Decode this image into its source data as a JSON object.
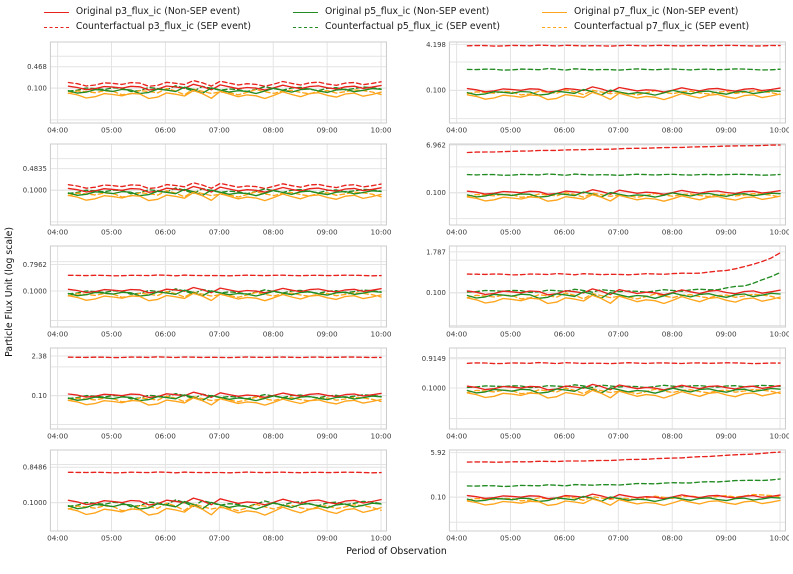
{
  "palette": {
    "red": "#e8221c",
    "green": "#228B22",
    "orange": "#ffa51c",
    "grid": "#e4e4e4",
    "spine": "#cccccc"
  },
  "legend": {
    "items": [
      {
        "label": "Original p3_flux_ic (Non-SEP event)",
        "color": "red",
        "dashed": false
      },
      {
        "label": "Counterfactual p3_flux_ic (SEP event)",
        "color": "red",
        "dashed": true
      },
      {
        "label": "Original p5_flux_ic (Non-SEP event)",
        "color": "green",
        "dashed": false
      },
      {
        "label": "Counterfactual p5_flux_ic (SEP event)",
        "color": "green",
        "dashed": true
      },
      {
        "label": "Original p7_flux_ic (Non-SEP event)",
        "color": "orange",
        "dashed": false
      },
      {
        "label": "Counterfactual p7_flux_ic (SEP event)",
        "color": "orange",
        "dashed": true
      }
    ]
  },
  "axes": {
    "ylabel": "Particle Flux Unit (log scale)",
    "xlabel": "Period of Observation",
    "x_ticks": [
      "04:00",
      "05:00",
      "06:00",
      "07:00",
      "08:00",
      "09:00",
      "10:00"
    ]
  },
  "chart_data": {
    "type": "line",
    "layout": "5 rows x 2 columns of subplots, shared log-scale y concept, x from 04:00 to 10:00",
    "x_start_minutes": 12,
    "x_end_minutes": 360,
    "waveform": [
      0.3,
      -0.1,
      -0.8,
      -0.5,
      0.2,
      0.0,
      -0.3,
      0.25,
      0.1,
      -0.9,
      -0.6,
      0.35,
      0.05,
      -0.35,
      0.9,
      0.2,
      -0.85,
      0.7,
      0.1,
      -0.5,
      -0.1,
      -0.3,
      -0.9,
      -0.2,
      0.6,
      0.0,
      -0.5,
      0.2,
      0.4,
      -0.2,
      -0.6,
      0.1,
      0.3,
      -0.4,
      0.0,
      0.5
    ],
    "waveform_note": "shared normalized oscillation pattern; series value = base*10^(amp*waveform[i+phase]) with optional log-linear trend base->end shaped by exponent p",
    "subplots": [
      {
        "id": "row1-left",
        "y_ticks": [
          {
            "label": "0.468",
            "value": 0.468
          },
          {
            "label": "0.100",
            "value": 0.1
          }
        ],
        "ylim": [
          0.008,
          2.8
        ],
        "series": [
          {
            "name": "Counterfactual p3_flux_ic (SEP event)",
            "color": "red",
            "dashed": true,
            "base": 0.14,
            "amp": 0.1,
            "phase": 0
          },
          {
            "name": "Counterfactual p5_flux_ic (SEP event)",
            "color": "green",
            "dashed": true,
            "base": 0.096,
            "amp": 0.1,
            "phase": 2
          },
          {
            "name": "Counterfactual p7_flux_ic (SEP event)",
            "color": "orange",
            "dashed": true,
            "base": 0.077,
            "amp": 0.11,
            "phase": 3
          },
          {
            "name": "Original p3_flux_ic (Non-SEP event)",
            "color": "red",
            "dashed": false,
            "base": 0.107,
            "amp": 0.1,
            "phase": 0
          },
          {
            "name": "Original p5_flux_ic (Non-SEP event)",
            "color": "green",
            "dashed": false,
            "base": 0.085,
            "amp": 0.11,
            "phase": 1
          },
          {
            "name": "Original p7_flux_ic (Non-SEP event)",
            "color": "orange",
            "dashed": false,
            "base": 0.063,
            "amp": 0.14,
            "phase": 0
          }
        ]
      },
      {
        "id": "row1-right",
        "y_ticks": [
          {
            "label": "4.198",
            "value": 4.198
          },
          {
            "label": "0.100",
            "value": 0.1
          }
        ],
        "ylim": [
          0.007,
          5.1
        ],
        "series": [
          {
            "name": "Counterfactual p3_flux_ic (SEP event)",
            "color": "red",
            "dashed": true,
            "base": 3.8,
            "amp": 0.018,
            "phase": 6
          },
          {
            "name": "Counterfactual p5_flux_ic (SEP event)",
            "color": "green",
            "dashed": true,
            "base": 0.55,
            "amp": 0.03,
            "phase": 5
          },
          {
            "name": "Counterfactual p7_flux_ic (SEP event)",
            "color": "orange",
            "dashed": true,
            "base": 0.085,
            "amp": 0.1,
            "phase": 3
          },
          {
            "name": "Original p3_flux_ic (Non-SEP event)",
            "color": "red",
            "dashed": false,
            "base": 0.107,
            "amp": 0.1,
            "phase": 0
          },
          {
            "name": "Original p5_flux_ic (Non-SEP event)",
            "color": "green",
            "dashed": false,
            "base": 0.085,
            "amp": 0.11,
            "phase": 1
          },
          {
            "name": "Original p7_flux_ic (Non-SEP event)",
            "color": "orange",
            "dashed": false,
            "base": 0.063,
            "amp": 0.14,
            "phase": 0
          }
        ]
      },
      {
        "id": "row2-left",
        "y_ticks": [
          {
            "label": "0.4835",
            "value": 0.4835
          },
          {
            "label": "0.1000",
            "value": 0.1
          }
        ],
        "ylim": [
          0.008,
          2.9
        ],
        "series": [
          {
            "name": "Counterfactual p3_flux_ic (SEP event)",
            "color": "red",
            "dashed": true,
            "base": 0.14,
            "amp": 0.1,
            "phase": 0
          },
          {
            "name": "Counterfactual p5_flux_ic (SEP event)",
            "color": "green",
            "dashed": true,
            "base": 0.096,
            "amp": 0.1,
            "phase": 2
          },
          {
            "name": "Counterfactual p7_flux_ic (SEP event)",
            "color": "orange",
            "dashed": true,
            "base": 0.077,
            "amp": 0.11,
            "phase": 3
          },
          {
            "name": "Original p3_flux_ic (Non-SEP event)",
            "color": "red",
            "dashed": false,
            "base": 0.107,
            "amp": 0.1,
            "phase": 0
          },
          {
            "name": "Original p5_flux_ic (Non-SEP event)",
            "color": "green",
            "dashed": false,
            "base": 0.085,
            "amp": 0.11,
            "phase": 1
          },
          {
            "name": "Original p7_flux_ic (Non-SEP event)",
            "color": "orange",
            "dashed": false,
            "base": 0.063,
            "amp": 0.14,
            "phase": 0
          }
        ]
      },
      {
        "id": "row2-right",
        "y_ticks": [
          {
            "label": "6.962",
            "value": 6.962
          },
          {
            "label": "0.100",
            "value": 0.1
          }
        ],
        "ylim": [
          0.0057,
          7.6
        ],
        "series": [
          {
            "name": "Counterfactual p3_flux_ic (SEP event)",
            "color": "red",
            "dashed": true,
            "base": 3.6,
            "end": 7.0,
            "p": 1,
            "amp": 0.008,
            "phase": 6
          },
          {
            "name": "Counterfactual p5_flux_ic (SEP event)",
            "color": "green",
            "dashed": true,
            "base": 0.5,
            "amp": 0.028,
            "phase": 5
          },
          {
            "name": "Counterfactual p7_flux_ic (SEP event)",
            "color": "orange",
            "dashed": true,
            "base": 0.082,
            "amp": 0.1,
            "phase": 3
          },
          {
            "name": "Original p3_flux_ic (Non-SEP event)",
            "color": "red",
            "dashed": false,
            "base": 0.107,
            "amp": 0.1,
            "phase": 0
          },
          {
            "name": "Original p5_flux_ic (Non-SEP event)",
            "color": "green",
            "dashed": false,
            "base": 0.085,
            "amp": 0.11,
            "phase": 1
          },
          {
            "name": "Original p7_flux_ic (Non-SEP event)",
            "color": "orange",
            "dashed": false,
            "base": 0.063,
            "amp": 0.14,
            "phase": 0
          }
        ]
      },
      {
        "id": "row3-left",
        "y_ticks": [
          {
            "label": "0.7962",
            "value": 0.7962
          },
          {
            "label": "0.1000",
            "value": 0.1
          }
        ],
        "ylim": [
          0.006,
          3.4
        ],
        "series": [
          {
            "name": "Counterfactual p3_flux_ic (SEP event)",
            "color": "red",
            "dashed": true,
            "base": 0.34,
            "amp": 0.015,
            "phase": 4
          },
          {
            "name": "Counterfactual p5_flux_ic (SEP event)",
            "color": "green",
            "dashed": true,
            "base": 0.096,
            "amp": 0.1,
            "phase": 2
          },
          {
            "name": "Counterfactual p7_flux_ic (SEP event)",
            "color": "orange",
            "dashed": true,
            "base": 0.077,
            "amp": 0.11,
            "phase": 3
          },
          {
            "name": "Original p3_flux_ic (Non-SEP event)",
            "color": "red",
            "dashed": false,
            "base": 0.107,
            "amp": 0.1,
            "phase": 0
          },
          {
            "name": "Original p5_flux_ic (Non-SEP event)",
            "color": "green",
            "dashed": false,
            "base": 0.085,
            "amp": 0.11,
            "phase": 1
          },
          {
            "name": "Original p7_flux_ic (Non-SEP event)",
            "color": "orange",
            "dashed": false,
            "base": 0.063,
            "amp": 0.14,
            "phase": 0
          }
        ]
      },
      {
        "id": "row3-right",
        "y_ticks": [
          {
            "label": "1.787",
            "value": 1.787
          },
          {
            "label": "0.100",
            "value": 0.1
          }
        ],
        "ylim": [
          0.009,
          2.7
        ],
        "series": [
          {
            "name": "Counterfactual p3_flux_ic (SEP event)",
            "color": "red",
            "dashed": true,
            "base": 0.37,
            "end": 1.7,
            "p": 9,
            "amp": 0.022,
            "phase": 4
          },
          {
            "name": "Counterfactual p5_flux_ic (SEP event)",
            "color": "green",
            "dashed": true,
            "base": 0.115,
            "end": 0.42,
            "p": 10,
            "amp": 0.05,
            "phase": 2
          },
          {
            "name": "Counterfactual p7_flux_ic (SEP event)",
            "color": "orange",
            "dashed": true,
            "base": 0.08,
            "amp": 0.1,
            "phase": 3
          },
          {
            "name": "Original p3_flux_ic (Non-SEP event)",
            "color": "red",
            "dashed": false,
            "base": 0.107,
            "amp": 0.1,
            "phase": 0
          },
          {
            "name": "Original p5_flux_ic (Non-SEP event)",
            "color": "green",
            "dashed": false,
            "base": 0.085,
            "amp": 0.11,
            "phase": 1
          },
          {
            "name": "Original p7_flux_ic (Non-SEP event)",
            "color": "orange",
            "dashed": false,
            "base": 0.063,
            "amp": 0.14,
            "phase": 0
          }
        ]
      },
      {
        "id": "row4-left",
        "y_ticks": [
          {
            "label": "2.38",
            "value": 2.38
          },
          {
            "label": "0.10",
            "value": 0.1
          }
        ],
        "ylim": [
          0.007,
          4.5
        ],
        "series": [
          {
            "name": "Counterfactual p3_flux_ic (SEP event)",
            "color": "red",
            "dashed": true,
            "base": 2.15,
            "amp": 0.012,
            "phase": 4
          },
          {
            "name": "Counterfactual p5_flux_ic (SEP event)",
            "color": "green",
            "dashed": true,
            "base": 0.096,
            "amp": 0.1,
            "phase": 2
          },
          {
            "name": "Counterfactual p7_flux_ic (SEP event)",
            "color": "orange",
            "dashed": true,
            "base": 0.077,
            "amp": 0.11,
            "phase": 3
          },
          {
            "name": "Original p3_flux_ic (Non-SEP event)",
            "color": "red",
            "dashed": false,
            "base": 0.107,
            "amp": 0.1,
            "phase": 0
          },
          {
            "name": "Original p5_flux_ic (Non-SEP event)",
            "color": "green",
            "dashed": false,
            "base": 0.085,
            "amp": 0.11,
            "phase": 1
          },
          {
            "name": "Original p7_flux_ic (Non-SEP event)",
            "color": "orange",
            "dashed": false,
            "base": 0.063,
            "amp": 0.14,
            "phase": 0
          }
        ]
      },
      {
        "id": "row4-right",
        "y_ticks": [
          {
            "label": "0.9149",
            "value": 0.9149
          },
          {
            "label": "0.1000",
            "value": 0.1
          }
        ],
        "ylim": [
          0.0045,
          2.07
        ],
        "series": [
          {
            "name": "Counterfactual p3_flux_ic (SEP event)",
            "color": "red",
            "dashed": true,
            "base": 0.66,
            "amp": 0.02,
            "phase": 6
          },
          {
            "name": "Counterfactual p5_flux_ic (SEP event)",
            "color": "green",
            "dashed": true,
            "base": 0.115,
            "amp": 0.05,
            "phase": 2
          },
          {
            "name": "Counterfactual p7_flux_ic (SEP event)",
            "color": "orange",
            "dashed": true,
            "base": 0.08,
            "amp": 0.1,
            "phase": 3
          },
          {
            "name": "Original p3_flux_ic (Non-SEP event)",
            "color": "red",
            "dashed": false,
            "base": 0.107,
            "amp": 0.1,
            "phase": 0
          },
          {
            "name": "Original p5_flux_ic (Non-SEP event)",
            "color": "green",
            "dashed": false,
            "base": 0.085,
            "amp": 0.11,
            "phase": 1
          },
          {
            "name": "Original p7_flux_ic (Non-SEP event)",
            "color": "orange",
            "dashed": false,
            "base": 0.063,
            "amp": 0.14,
            "phase": 0
          }
        ]
      },
      {
        "id": "row5-left",
        "y_ticks": [
          {
            "label": "0.8486",
            "value": 0.8486
          },
          {
            "label": "0.1000",
            "value": 0.1
          }
        ],
        "ylim": [
          0.018,
          2.4
        ],
        "series": [
          {
            "name": "Counterfactual p3_flux_ic (SEP event)",
            "color": "red",
            "dashed": true,
            "base": 0.62,
            "amp": 0.012,
            "phase": 4
          },
          {
            "name": "Counterfactual p5_flux_ic (SEP event)",
            "color": "green",
            "dashed": true,
            "base": 0.096,
            "amp": 0.1,
            "phase": 2
          },
          {
            "name": "Counterfactual p7_flux_ic (SEP event)",
            "color": "orange",
            "dashed": true,
            "base": 0.077,
            "amp": 0.11,
            "phase": 3
          },
          {
            "name": "Original p3_flux_ic (Non-SEP event)",
            "color": "red",
            "dashed": false,
            "base": 0.107,
            "amp": 0.1,
            "phase": 0
          },
          {
            "name": "Original p5_flux_ic (Non-SEP event)",
            "color": "green",
            "dashed": false,
            "base": 0.085,
            "amp": 0.11,
            "phase": 1
          },
          {
            "name": "Original p7_flux_ic (Non-SEP event)",
            "color": "orange",
            "dashed": false,
            "base": 0.063,
            "amp": 0.14,
            "phase": 0
          }
        ]
      },
      {
        "id": "row5-right",
        "y_ticks": [
          {
            "label": "5.92",
            "value": 5.92
          },
          {
            "label": "0.10",
            "value": 0.1
          }
        ],
        "ylim": [
          0.0045,
          7.5
        ],
        "series": [
          {
            "name": "Counterfactual p3_flux_ic (SEP event)",
            "color": "red",
            "dashed": true,
            "base": 2.5,
            "end": 6.2,
            "p": 2.2,
            "amp": 0.012,
            "phase": 6
          },
          {
            "name": "Counterfactual p5_flux_ic (SEP event)",
            "color": "green",
            "dashed": true,
            "base": 0.28,
            "end": 0.52,
            "p": 2,
            "amp": 0.03,
            "phase": 5
          },
          {
            "name": "Counterfactual p7_flux_ic (SEP event)",
            "color": "orange",
            "dashed": true,
            "base": 0.085,
            "end": 0.12,
            "p": 2,
            "amp": 0.09,
            "phase": 3
          },
          {
            "name": "Original p3_flux_ic (Non-SEP event)",
            "color": "red",
            "dashed": false,
            "base": 0.107,
            "amp": 0.1,
            "phase": 0
          },
          {
            "name": "Original p5_flux_ic (Non-SEP event)",
            "color": "green",
            "dashed": false,
            "base": 0.085,
            "amp": 0.11,
            "phase": 1
          },
          {
            "name": "Original p7_flux_ic (Non-SEP event)",
            "color": "orange",
            "dashed": false,
            "base": 0.063,
            "amp": 0.14,
            "phase": 0
          }
        ]
      }
    ]
  }
}
